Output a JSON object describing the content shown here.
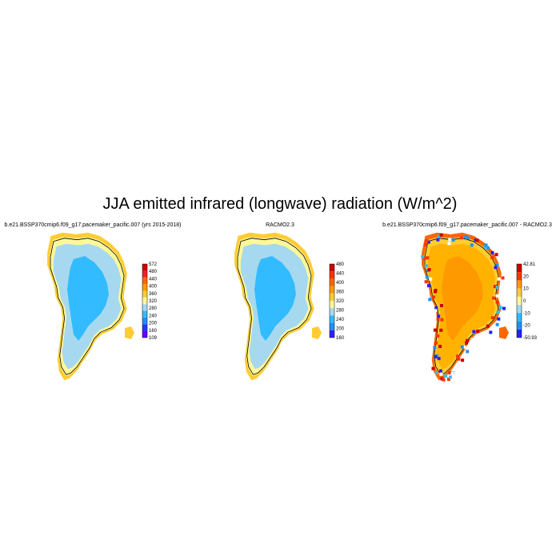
{
  "title": "JJA emitted infrared (longwave) radiation (W/m^2)",
  "panels": [
    {
      "title": "b.e21.BSSP370cmip6.f09_g17.pacemaker_pacific.007 (yrs 2015-2018)",
      "colorbar": {
        "labels": [
          "572",
          "480",
          "440",
          "400",
          "360",
          "320",
          "280",
          "240",
          "200",
          "160",
          "109"
        ],
        "colors": [
          "#cc0000",
          "#ee2222",
          "#ff6600",
          "#ff9900",
          "#ffcc33",
          "#fff799",
          "#a6d9f0",
          "#33bbff",
          "#1e90ff",
          "#1f3bff",
          "#6600ff"
        ]
      },
      "palette": {
        "interior": "#33bbff",
        "slope": "#a6d9f0",
        "coast": "#fff799",
        "edge": "#ffcc33"
      }
    },
    {
      "title": "RACMO2.3",
      "colorbar": {
        "labels": [
          "480",
          "440",
          "400",
          "360",
          "320",
          "280",
          "240",
          "200",
          "160"
        ],
        "colors": [
          "#cc0000",
          "#ff3300",
          "#ff6600",
          "#ff9900",
          "#ffcc33",
          "#fff799",
          "#a6d9f0",
          "#33bbff",
          "#1e90ff",
          "#3322ff"
        ]
      },
      "palette": {
        "interior": "#33bbff",
        "slope": "#a6d9f0",
        "coast": "#fff799",
        "edge": "#ffcc33"
      }
    },
    {
      "title": "b.e21.BSSP370cmip6.f09_g17.pacemaker_pacific.007 - RACMO2.3",
      "colorbar": {
        "labels": [
          "42.81",
          "20",
          "10",
          "0",
          "-10",
          "-20",
          "-50.93"
        ],
        "colors": [
          "#cc0000",
          "#ff3300",
          "#ff9900",
          "#ffcc33",
          "#fff799",
          "#a6d9f0",
          "#33bbff",
          "#1e90ff",
          "#2222ff"
        ]
      },
      "palette": {
        "interior": "#ff9900",
        "slope": "#ffb300",
        "coast": "#ffcc33",
        "edge": "#ff6600"
      }
    }
  ]
}
